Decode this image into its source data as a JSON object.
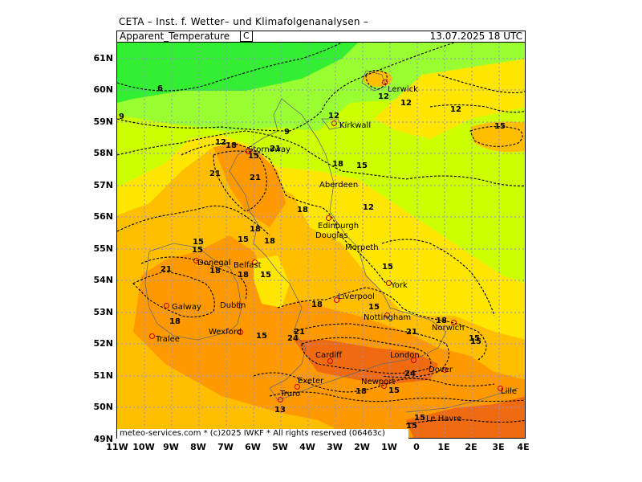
{
  "header": {
    "title": "CETA – Inst. f. Wetter– und Klimafolgenanalysen –"
  },
  "infobar": {
    "parameter": "Apparent_Temperature",
    "unit": "C",
    "valid": "13.07.2025  18  UTC"
  },
  "footer": {
    "copyright": "meteo-services.com * (c)2025 IWKF * All rights reserved (06463c)"
  },
  "axes": {
    "lat_labels": [
      "61N",
      "60N",
      "59N",
      "58N",
      "57N",
      "56N",
      "55N",
      "54N",
      "53N",
      "52N",
      "51N",
      "50N",
      "49N"
    ],
    "lon_labels": [
      "11W",
      "10W",
      "9W",
      "8W",
      "7W",
      "6W",
      "5W",
      "4W",
      "3W",
      "2W",
      "1W",
      "0",
      "1E",
      "2E",
      "3E",
      "4E"
    ]
  },
  "colors": {
    "green": "#33ee33",
    "lime": "#99ff33",
    "yellowgreen": "#ccff00",
    "yellow": "#ffe600",
    "gold": "#ffbf00",
    "orange": "#ff9900",
    "darkorange": "#f06a10",
    "grid": "#8f8fd8",
    "contour": "#000000"
  },
  "cities": [
    {
      "name": "Lerwick"
    },
    {
      "name": "Kirkwall"
    },
    {
      "name": "Stornoway"
    },
    {
      "name": "Aberdeen"
    },
    {
      "name": "Edinburgh"
    },
    {
      "name": "Douglas"
    },
    {
      "name": "Morpeth"
    },
    {
      "name": "Donegal"
    },
    {
      "name": "Belfast"
    },
    {
      "name": "York"
    },
    {
      "name": "Galway"
    },
    {
      "name": "Dublin"
    },
    {
      "name": "Liverpool"
    },
    {
      "name": "Nottingham"
    },
    {
      "name": "Norwich"
    },
    {
      "name": "Wexford"
    },
    {
      "name": "Tralee"
    },
    {
      "name": "Cardiff"
    },
    {
      "name": "London"
    },
    {
      "name": "Dover"
    },
    {
      "name": "Exeter"
    },
    {
      "name": "Newport"
    },
    {
      "name": "Truro"
    },
    {
      "name": "Le Havre"
    },
    {
      "name": "Lille"
    }
  ],
  "contour_labels": [
    "6",
    "9",
    "9",
    "12",
    "12",
    "12",
    "12",
    "15",
    "12",
    "18",
    "15",
    "21",
    "15",
    "18",
    "15",
    "18",
    "12",
    "21",
    "21",
    "18",
    "15",
    "18",
    "15",
    "18",
    "21",
    "15",
    "18",
    "15",
    "15",
    "18",
    "18",
    "21",
    "18",
    "15",
    "18",
    "21",
    "24",
    "21",
    "24",
    "15",
    "18",
    "15",
    "15",
    "13",
    "15",
    "15",
    "18",
    "15"
  ]
}
